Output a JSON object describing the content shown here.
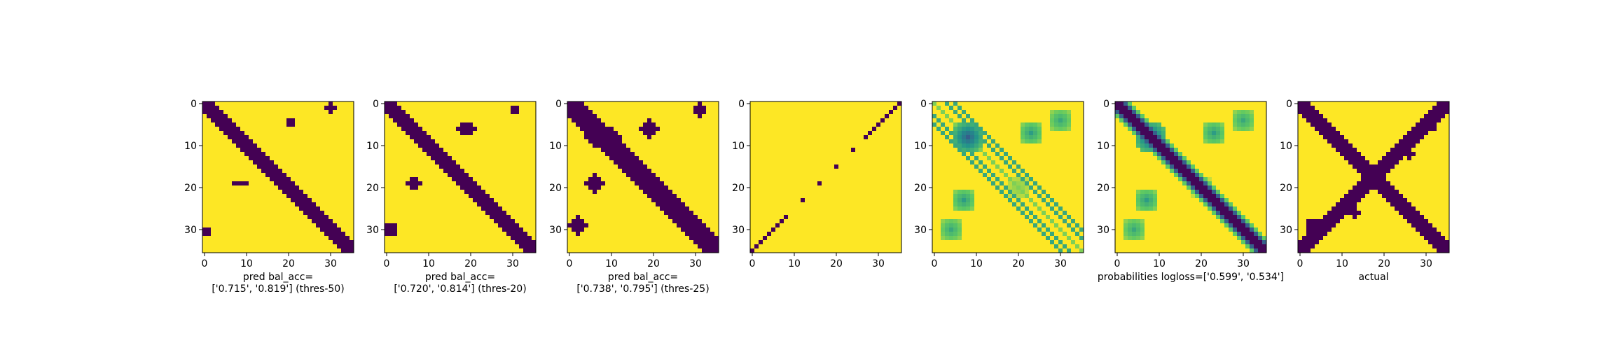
{
  "figure": {
    "colors": {
      "low": "#440154",
      "high": "#fde725",
      "mid_1": "#21918c",
      "mid_2": "#5ec962",
      "mid_3": "#b5de2b"
    }
  },
  "chart_data": [
    {
      "type": "heatmap",
      "matrix_size": 36,
      "caption_lines": [
        "pred bal_acc=",
        "['0.715', '0.819'] (thres-50)"
      ],
      "x_ticks": [
        "0",
        "10",
        "20",
        "30"
      ],
      "y_ticks": [
        "0",
        "10",
        "20",
        "30"
      ],
      "xlim": [
        -0.5,
        35.5
      ],
      "ylim": [
        35.5,
        -0.5
      ],
      "binary": true,
      "band_half_width": 2,
      "diag_offset": 0,
      "blobs": [
        [
          20.5,
          4.5,
          1.5,
          0.8
        ],
        [
          8.5,
          19,
          1.5,
          0.8
        ],
        [
          30,
          1,
          1,
          1
        ],
        [
          0.5,
          30.5,
          1,
          1.5
        ]
      ]
    },
    {
      "type": "heatmap",
      "matrix_size": 36,
      "caption_lines": [
        "pred bal_acc=",
        "['0.720', '0.814'] (thres-20)"
      ],
      "x_ticks": [
        "0",
        "10",
        "20",
        "30"
      ],
      "y_ticks": [
        "0",
        "10",
        "20",
        "30"
      ],
      "xlim": [
        -0.5,
        35.5
      ],
      "ylim": [
        35.5,
        -0.5
      ],
      "binary": true,
      "band_half_width": 2,
      "diag_offset": 0,
      "blobs": [
        [
          19,
          6,
          2,
          1.5
        ],
        [
          6.5,
          19,
          1.5,
          1.5
        ],
        [
          30.5,
          1.5,
          1.5,
          1
        ],
        [
          1,
          30,
          1.5,
          1.5
        ]
      ]
    },
    {
      "type": "heatmap",
      "matrix_size": 36,
      "caption_lines": [
        "pred bal_acc=",
        "['0.738', '0.795'] (thres-25)"
      ],
      "x_ticks": [
        "0",
        "10",
        "20",
        "30"
      ],
      "y_ticks": [
        "0",
        "10",
        "20",
        "30"
      ],
      "xlim": [
        -0.5,
        35.5
      ],
      "ylim": [
        35.5,
        -0.5
      ],
      "binary": true,
      "band_half_width": 3,
      "diag_offset": 0,
      "blobs": [
        [
          8,
          8,
          4,
          3
        ],
        [
          19,
          6,
          2,
          2
        ],
        [
          6,
          19,
          2,
          2
        ],
        [
          31,
          1.5,
          2,
          1.5
        ],
        [
          2,
          29,
          2,
          2
        ]
      ]
    },
    {
      "type": "heatmap",
      "matrix_size": 36,
      "caption_lines": [],
      "x_ticks": [
        "0",
        "10",
        "20",
        "30"
      ],
      "y_ticks": [
        "0",
        "10",
        "20",
        "30"
      ],
      "xlim": [
        -0.5,
        35.5
      ],
      "ylim": [
        35.5,
        -0.5
      ],
      "binary": true,
      "anti_diagonal_line": true
    },
    {
      "type": "heatmap",
      "matrix_size": 36,
      "caption_lines": [],
      "x_ticks": [
        "0",
        "10",
        "20",
        "30"
      ],
      "y_ticks": [
        "0",
        "10",
        "20",
        "30"
      ],
      "xlim": [
        -0.5,
        35.5
      ],
      "ylim": [
        35.5,
        -0.5
      ],
      "binary": false,
      "continuous_pattern": "offdiag"
    },
    {
      "type": "heatmap",
      "matrix_size": 36,
      "caption_lines": [
        "probabilities logloss=['0.599', '0.534']"
      ],
      "x_ticks": [
        "0",
        "10",
        "20",
        "30"
      ],
      "y_ticks": [
        "0",
        "10",
        "20",
        "30"
      ],
      "xlim": [
        -0.5,
        35.5
      ],
      "ylim": [
        35.5,
        -0.5
      ],
      "binary": false,
      "continuous_pattern": "diag"
    },
    {
      "type": "heatmap",
      "matrix_size": 36,
      "caption_lines": [
        "actual"
      ],
      "x_ticks": [
        "0",
        "10",
        "20",
        "30"
      ],
      "y_ticks": [
        "0",
        "10",
        "20",
        "30"
      ],
      "xlim": [
        -0.5,
        35.5
      ],
      "ylim": [
        35.5,
        -0.5
      ],
      "binary": true,
      "band_half_width": 2,
      "x_shape": true,
      "blobs": [
        [
          26,
          12,
          1.5,
          1
        ],
        [
          13,
          26,
          1,
          1.5
        ],
        [
          31,
          5,
          1.5,
          1.5
        ],
        [
          3,
          29,
          1.5,
          1.5
        ]
      ]
    }
  ]
}
